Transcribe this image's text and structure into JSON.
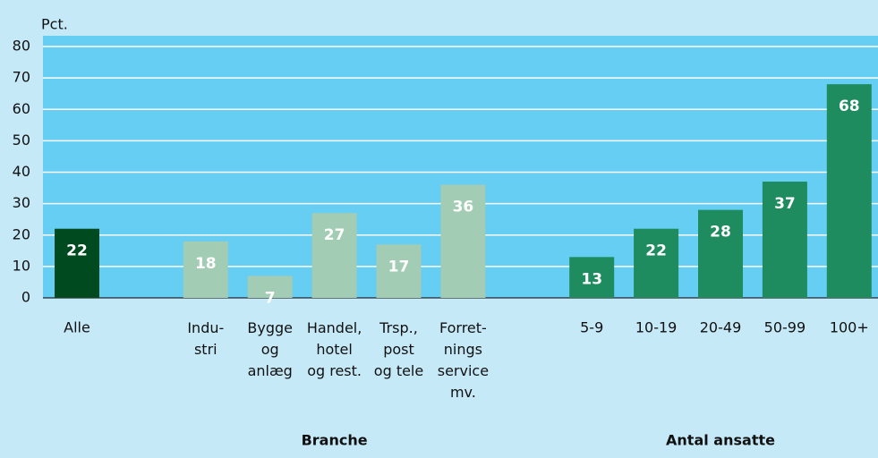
{
  "chart_data": {
    "type": "bar",
    "y_label": "Pct.",
    "categories": [
      "Alle",
      null,
      "Indu-\nstri",
      "Bygge\nog\nanlæg",
      "Handel,\nhotel\nog rest.",
      "Trsp.,\npost\nog tele",
      "Forret-\nnings\nservice\nmv.",
      null,
      "5-9",
      "10-19",
      "20-49",
      "50-99",
      "100+"
    ],
    "values": [
      22,
      null,
      18,
      7,
      27,
      17,
      36,
      null,
      13,
      22,
      28,
      37,
      68
    ],
    "colors": [
      "#004a20",
      null,
      "#a3ccb4",
      "#a3ccb4",
      "#a3ccb4",
      "#a3ccb4",
      "#a3ccb4",
      null,
      "#1e8c5e",
      "#1e8c5e",
      "#1e8c5e",
      "#1e8c5e",
      "#1e8c5e"
    ],
    "group_labels": [
      "Branche",
      "Antal ansatte"
    ],
    "ylim": [
      0,
      80
    ],
    "yticks": [
      0,
      10,
      20,
      30,
      40,
      50,
      60,
      70,
      80
    ],
    "grid": true
  }
}
